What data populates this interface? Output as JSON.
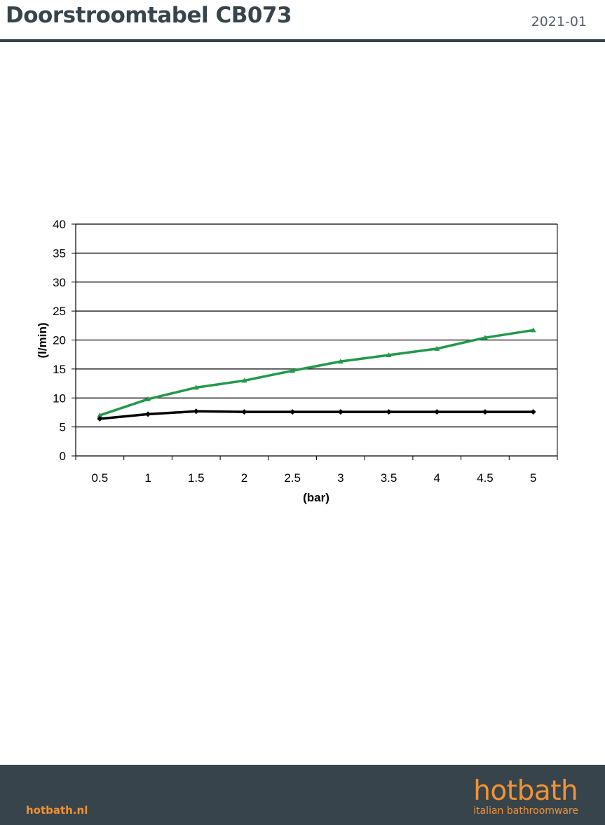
{
  "header": {
    "title": "Doorstroomtabel CB073",
    "date": "2021-01"
  },
  "footer": {
    "website": "hotbath.nl",
    "logo": "hotbath",
    "tagline": "italian bathroomware"
  },
  "chart_data": {
    "type": "line",
    "xlabel": "(bar)",
    "ylabel": "(l/min)",
    "categories": [
      "0.5",
      "1",
      "1.5",
      "2",
      "2.5",
      "3",
      "3.5",
      "4",
      "4.5",
      "5"
    ],
    "ylim": [
      0,
      40
    ],
    "yticks": [
      0,
      5,
      10,
      15,
      20,
      25,
      30,
      35,
      40
    ],
    "grid": true,
    "series": [
      {
        "color": "#22994a",
        "marker": "triangle",
        "values": [
          7.0,
          9.8,
          11.8,
          13.0,
          14.7,
          16.3,
          17.4,
          18.5,
          20.4,
          21.7
        ]
      },
      {
        "color": "#000000",
        "marker": "diamond",
        "values": [
          6.4,
          7.2,
          7.7,
          7.6,
          7.6,
          7.6,
          7.6,
          7.6,
          7.6,
          7.6
        ]
      }
    ]
  }
}
